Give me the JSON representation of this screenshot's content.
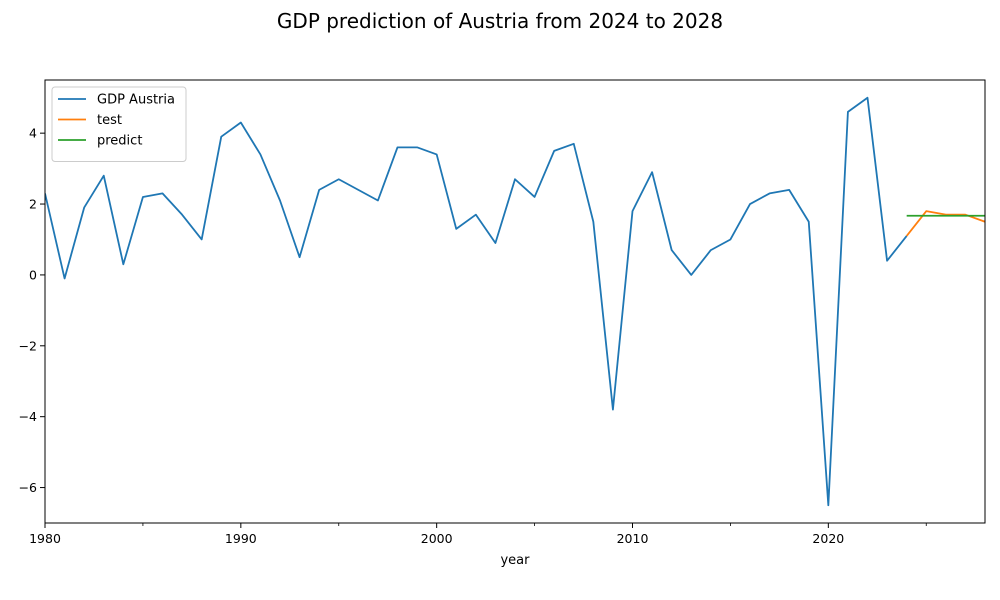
{
  "chart_data": {
    "type": "line",
    "title": "GDP prediction of Austria from 2024 to 2028",
    "xlabel": "year",
    "ylabel": "",
    "xlim": [
      1980,
      2028
    ],
    "ylim": [
      -7.0,
      5.5
    ],
    "x_ticks": [
      1980,
      1990,
      2000,
      2010,
      2020
    ],
    "y_ticks": [
      -6,
      -4,
      -2,
      0,
      2,
      4
    ],
    "grid": false,
    "legend_position": "top-left",
    "series": [
      {
        "name": "GDP Austria",
        "color": "#1f77b4",
        "x": [
          1980,
          1981,
          1982,
          1983,
          1984,
          1985,
          1986,
          1987,
          1988,
          1989,
          1990,
          1991,
          1992,
          1993,
          1994,
          1995,
          1996,
          1997,
          1998,
          1999,
          2000,
          2001,
          2002,
          2003,
          2004,
          2005,
          2006,
          2007,
          2008,
          2009,
          2010,
          2011,
          2012,
          2013,
          2014,
          2015,
          2016,
          2017,
          2018,
          2019,
          2020,
          2021,
          2022,
          2023,
          2024
        ],
        "values": [
          2.3,
          -0.1,
          1.9,
          2.8,
          0.3,
          2.2,
          2.3,
          1.7,
          1.0,
          3.9,
          4.3,
          3.4,
          2.1,
          0.5,
          2.4,
          2.7,
          2.4,
          2.1,
          3.6,
          3.6,
          3.4,
          1.3,
          1.7,
          0.9,
          2.7,
          2.2,
          3.5,
          3.7,
          1.5,
          -3.8,
          1.8,
          2.9,
          0.7,
          0.0,
          0.7,
          1.0,
          2.0,
          2.3,
          2.4,
          1.5,
          -6.5,
          4.6,
          5.0,
          0.4,
          1.1
        ]
      },
      {
        "name": "test",
        "color": "#ff7f0e",
        "x": [
          2024,
          2025,
          2026,
          2027,
          2028
        ],
        "values": [
          1.1,
          1.8,
          1.7,
          1.7,
          1.5
        ]
      },
      {
        "name": "predict",
        "color": "#2ca02c",
        "x": [
          2024,
          2025,
          2026,
          2027,
          2028
        ],
        "values": [
          1.67,
          1.67,
          1.67,
          1.67,
          1.67
        ]
      }
    ]
  }
}
